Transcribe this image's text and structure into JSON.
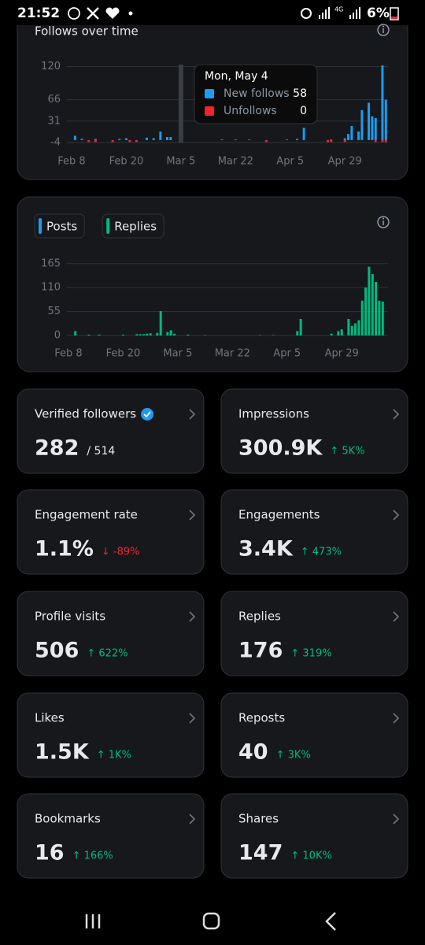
{
  "status_bar": {
    "time": "21:52",
    "network": "4G",
    "battery": "6%"
  },
  "follows_chart": {
    "type": "bar",
    "title": "Follows over time",
    "categories": [
      "Feb 8",
      null,
      null,
      null,
      null,
      null,
      null,
      null,
      null,
      null,
      null,
      null,
      null,
      null,
      null,
      null,
      "Feb 20",
      null,
      null,
      null,
      null,
      null,
      null,
      null,
      null,
      null,
      null,
      null,
      null,
      null,
      null,
      null,
      "Mar 5",
      null,
      null,
      null,
      null,
      null,
      null,
      null,
      null,
      null,
      null,
      null,
      null,
      null,
      null,
      null,
      "Mar 22",
      null,
      null,
      null,
      null,
      null,
      null,
      null,
      null,
      null,
      null,
      null,
      null,
      null,
      null,
      null,
      "Apr 5",
      null,
      null,
      null,
      null,
      null,
      null,
      null,
      null,
      null,
      null,
      null,
      null,
      null,
      null,
      null,
      "Apr 29",
      null,
      null,
      null,
      null,
      null,
      null,
      null,
      null,
      null,
      null,
      null,
      null
    ],
    "series": [
      {
        "name": "New follows",
        "color": "#1d9bf0",
        "values": [
          0,
          7,
          0,
          2,
          0,
          0,
          0,
          2,
          0,
          0,
          0,
          0,
          0,
          0,
          2,
          0,
          3,
          0,
          0,
          0,
          0,
          0,
          4,
          0,
          3,
          0,
          14,
          0,
          5,
          5,
          0,
          0,
          0,
          0,
          0,
          0,
          0,
          0,
          0,
          0,
          0,
          0,
          0,
          0,
          1,
          0,
          0,
          0,
          1,
          0,
          0,
          0,
          1,
          0,
          0,
          0,
          0,
          0,
          0,
          0,
          0,
          0,
          0,
          1,
          0,
          0,
          2,
          0,
          20,
          0,
          0,
          0,
          0,
          0,
          0,
          0,
          1,
          0,
          0,
          0,
          3,
          10,
          23,
          0,
          14,
          49,
          0,
          61,
          39,
          36,
          0,
          122,
          66
        ]
      },
      {
        "name": "Unfollows",
        "color": "#f4212e",
        "values": [
          0,
          0,
          0,
          0,
          0,
          1,
          0,
          1,
          0,
          0,
          0,
          0,
          1,
          0,
          0,
          0,
          0,
          1,
          0,
          1,
          0,
          0,
          0,
          0,
          0,
          0,
          0,
          0,
          0,
          0,
          0,
          0,
          0,
          0,
          0,
          0,
          0,
          0,
          0,
          0,
          0,
          0,
          0,
          0,
          0,
          0,
          0,
          0,
          0,
          0,
          0,
          0,
          0,
          0,
          0,
          0,
          0,
          1,
          0,
          0,
          0,
          0,
          0,
          0,
          0,
          0,
          0,
          0,
          0,
          0,
          0,
          0,
          0,
          0,
          0,
          1,
          1,
          0,
          0,
          0,
          1,
          0,
          0,
          0,
          0,
          0,
          0,
          0,
          0,
          1,
          0,
          1,
          1
        ]
      }
    ],
    "ylim": [
      -4,
      126
    ],
    "yticks": [
      -4,
      31,
      66,
      120
    ],
    "grid": true,
    "tooltip": {
      "date": "Mon, May 4",
      "values": [
        58,
        0
      ]
    }
  },
  "activity_chart": {
    "type": "bar",
    "categories": [
      "Feb 8",
      null,
      null,
      null,
      null,
      null,
      null,
      null,
      null,
      null,
      null,
      null,
      null,
      null,
      null,
      null,
      "Feb 20",
      null,
      null,
      null,
      null,
      null,
      null,
      null,
      null,
      null,
      null,
      null,
      null,
      null,
      null,
      null,
      "Mar 5",
      null,
      null,
      null,
      null,
      null,
      null,
      null,
      null,
      null,
      null,
      null,
      null,
      null,
      null,
      null,
      "Mar 22",
      null,
      null,
      null,
      null,
      null,
      null,
      null,
      null,
      null,
      null,
      null,
      null,
      null,
      null,
      null,
      "Apr 5",
      null,
      null,
      null,
      null,
      null,
      null,
      null,
      null,
      null,
      null,
      null,
      null,
      null,
      null,
      null,
      "Apr 29",
      null,
      null,
      null,
      null,
      null,
      null,
      null,
      null,
      null,
      null,
      null,
      null
    ],
    "series": [
      {
        "name": "Posts",
        "color": "#1d9bf0",
        "values": [
          0,
          0,
          0,
          0,
          0,
          0,
          0,
          0,
          0,
          0,
          0,
          0,
          0,
          0,
          0,
          0,
          0,
          0,
          0,
          0,
          0,
          0,
          0,
          0,
          0,
          0,
          0,
          0,
          0,
          0,
          0,
          0,
          0,
          0,
          0,
          0,
          0,
          0,
          0,
          0,
          0,
          0,
          0,
          0,
          0,
          0,
          0,
          0,
          0,
          0,
          0,
          0,
          0,
          0,
          0,
          0,
          0,
          0,
          0,
          0,
          0,
          0,
          0,
          0,
          0,
          0,
          0,
          0,
          0,
          0,
          0,
          0,
          0,
          0,
          0,
          0,
          0,
          0,
          0,
          0,
          0,
          0,
          0,
          0,
          0,
          0,
          0,
          0,
          0,
          0,
          0,
          0,
          0
        ]
      },
      {
        "name": "Replies",
        "color": "#00ba7c",
        "values": [
          0,
          0,
          10,
          0,
          0,
          0,
          2,
          0,
          0,
          2,
          0,
          0,
          0,
          0,
          0,
          0,
          2,
          0,
          0,
          0,
          3,
          3,
          3,
          4,
          5,
          0,
          6,
          56,
          0,
          8,
          12,
          4,
          0,
          0,
          0,
          2,
          0,
          0,
          0,
          0,
          1,
          0,
          0,
          0,
          0,
          0,
          0,
          0,
          0,
          0,
          0,
          0,
          0,
          0,
          0,
          0,
          1,
          0,
          0,
          0,
          1,
          0,
          0,
          0,
          0,
          0,
          0,
          10,
          38,
          0,
          0,
          0,
          0,
          0,
          0,
          0,
          0,
          4,
          0,
          10,
          14,
          0,
          38,
          22,
          28,
          35,
          80,
          110,
          158,
          141,
          123,
          80,
          78
        ]
      }
    ],
    "ylim": [
      0,
      170
    ],
    "yticks": [
      0,
      55,
      110,
      165
    ],
    "grid": true
  },
  "cards": [
    {
      "label": "Verified followers",
      "value": "282",
      "total": "/ 514"
    },
    {
      "label": "Impressions",
      "value": "300.9K",
      "change": "↑ 5K%"
    },
    {
      "label": "Engagement rate",
      "value": "1.1%",
      "change": "↓ -89%"
    },
    {
      "label": "Engagements",
      "value": "3.4K",
      "change": "↑ 473%"
    },
    {
      "label": "Profile visits",
      "value": "506",
      "change": "↑ 622%"
    },
    {
      "label": "Replies",
      "value": "176",
      "change": "↑ 319%"
    },
    {
      "label": "Likes",
      "value": "1.5K",
      "change": "↑ 1K%"
    },
    {
      "label": "Reposts",
      "value": "40",
      "change": "↑ 3K%"
    },
    {
      "label": "Bookmarks",
      "value": "16",
      "change": "↑ 166%"
    },
    {
      "label": "Shares",
      "value": "147",
      "change": "↑ 10K%"
    }
  ]
}
